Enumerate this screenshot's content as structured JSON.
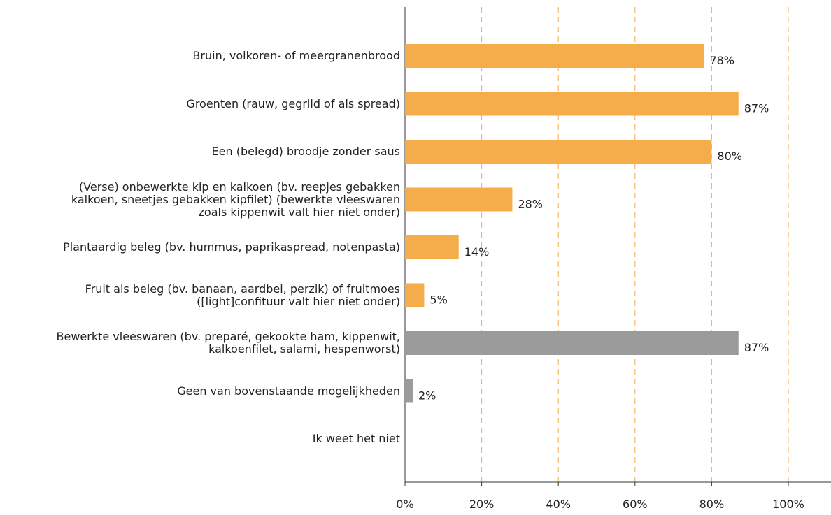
{
  "chart_data": {
    "type": "bar",
    "orientation": "horizontal",
    "categories": [
      "Bruin, volkoren- of meergranenbrood",
      "Groenten (rauw, gegrild of als spread)",
      "Een (belegd) broodje zonder saus",
      "(Verse) onbewerkte kip en kalkoen (bv. reepjes gebakken\nkalkoen, sneetjes gebakken kipfilet) (bewerkte vleeswaren\nzoals kippenwit valt hier niet onder)",
      "Plantaardig beleg (bv. hummus, paprikaspread, notenpasta)",
      "Fruit als beleg (bv. banaan, aardbei, perzik) of fruitmoes\n([light]confituur valt hier niet onder)",
      "Bewerkte vleeswaren (bv. preparé, gekookte ham, kippenwit,\nkalkoenfilet, salami, hespenworst)",
      "Geen van bovenstaande mogelijkheden",
      "Ik weet het niet"
    ],
    "values": [
      78,
      87,
      80,
      28,
      14,
      5,
      87,
      2,
      0
    ],
    "value_labels": [
      "78%",
      "87%",
      "80%",
      "28%",
      "14%",
      "5%",
      "87%",
      "2%",
      null
    ],
    "colors": [
      "#f5ad4b",
      "#f5ad4b",
      "#f5ad4b",
      "#f5ad4b",
      "#f5ad4b",
      "#f5ad4b",
      "#9b9b9b",
      "#9b9b9b",
      "#9b9b9b"
    ],
    "xlim": [
      0,
      100
    ],
    "xticks": [
      {
        "value": 0,
        "label": "0%"
      },
      {
        "value": 20,
        "label": "20%"
      },
      {
        "value": 40,
        "label": "40%"
      },
      {
        "value": 60,
        "label": "60%"
      },
      {
        "value": 80,
        "label": "80%"
      },
      {
        "value": 100,
        "label": "100%"
      }
    ],
    "grid": true,
    "grid_color": "#f5ad4b"
  }
}
